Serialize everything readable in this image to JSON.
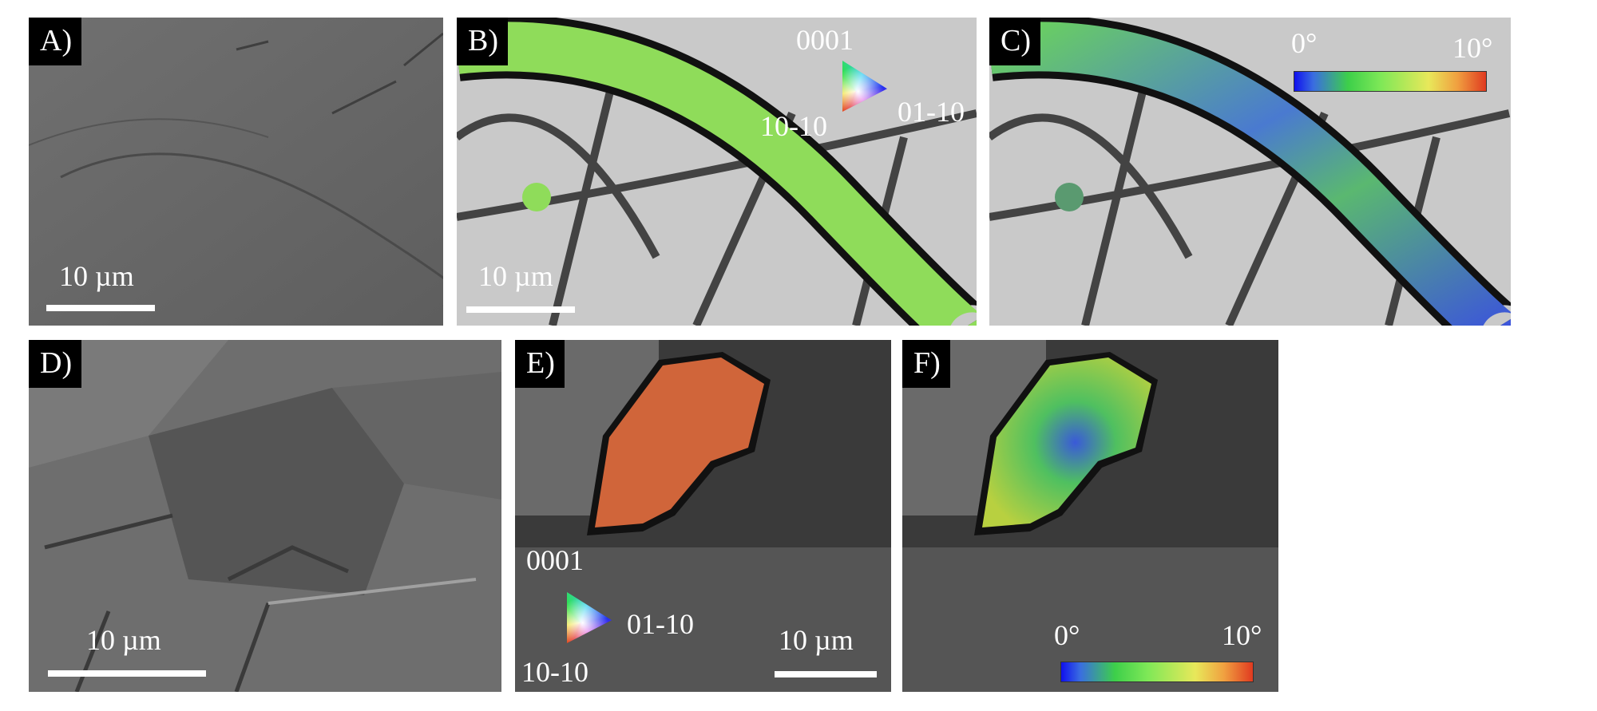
{
  "panels": [
    {
      "id": "A",
      "label": "A)",
      "scale_bar": "10 µm",
      "type": "SEM image"
    },
    {
      "id": "B",
      "label": "B)",
      "scale_bar": "10 µm",
      "ipf_key": {
        "top": "0001",
        "left": "10-10",
        "right": "01-10"
      },
      "overlay_color": "#8fdc5a"
    },
    {
      "id": "C",
      "label": "C)",
      "colorbar": {
        "min": "0°",
        "max": "10°"
      }
    },
    {
      "id": "D",
      "label": "D)",
      "scale_bar": "10 µm"
    },
    {
      "id": "E",
      "label": "E)",
      "scale_bar": "10 µm",
      "ipf_key": {
        "top": "0001",
        "left": "10-10",
        "right": "01-10"
      },
      "overlay_color": "#d0653a"
    },
    {
      "id": "F",
      "label": "F)",
      "colorbar": {
        "min": "0°",
        "max": "10°"
      }
    }
  ],
  "colors": {
    "colorbar": [
      "#1010ee",
      "#3dcf4a",
      "#e8e85a",
      "#e03a20"
    ]
  }
}
